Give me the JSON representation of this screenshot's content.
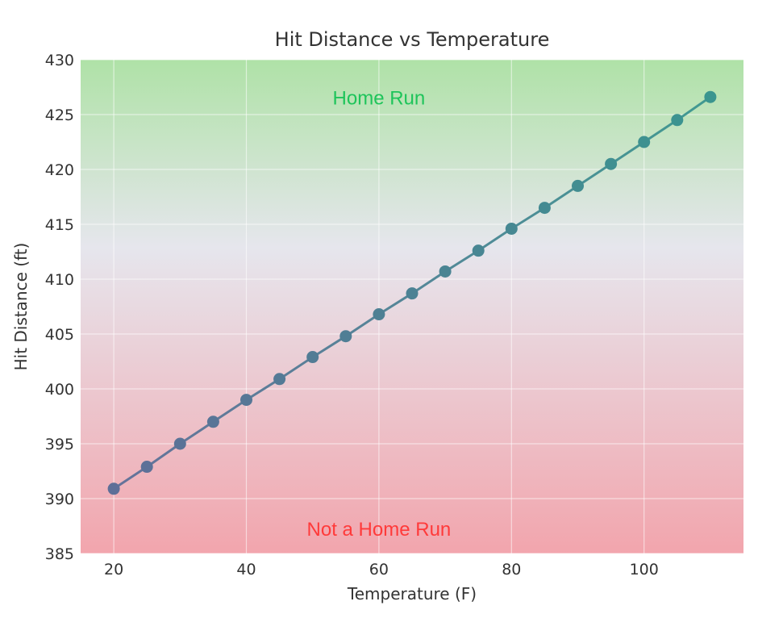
{
  "chart_data": {
    "type": "line",
    "title": "Hit Distance vs Temperature",
    "xlabel": "Temperature (F)",
    "ylabel": "Hit Distance (ft)",
    "xlim": [
      15,
      115
    ],
    "ylim": [
      385,
      430
    ],
    "xticks": [
      20,
      40,
      60,
      80,
      100
    ],
    "yticks": [
      385,
      390,
      395,
      400,
      405,
      410,
      415,
      420,
      425,
      430
    ],
    "grid": true,
    "x": [
      20,
      25,
      30,
      35,
      40,
      45,
      50,
      55,
      60,
      65,
      70,
      75,
      80,
      85,
      90,
      95,
      100,
      105,
      110
    ],
    "series": [
      {
        "values": [
          390.9,
          392.9,
          395.0,
          397.0,
          399.0,
          400.9,
          402.9,
          404.8,
          406.8,
          408.7,
          410.7,
          412.6,
          414.6,
          416.5,
          418.5,
          420.5,
          422.5,
          424.5,
          426.6
        ]
      }
    ],
    "annotations": [
      {
        "text": "Home Run",
        "x": 60,
        "y": 426.5,
        "color": "#1ec45a"
      },
      {
        "text": "Not a Home Run",
        "x": 60,
        "y": 387.2,
        "color": "#ff3a3a"
      }
    ],
    "colors": {
      "top": "#afe2a7",
      "middle": "#e6e6ed",
      "bottom": "#f2a5ad",
      "line_start": "#5e6f98",
      "line_end": "#3a958f"
    }
  }
}
